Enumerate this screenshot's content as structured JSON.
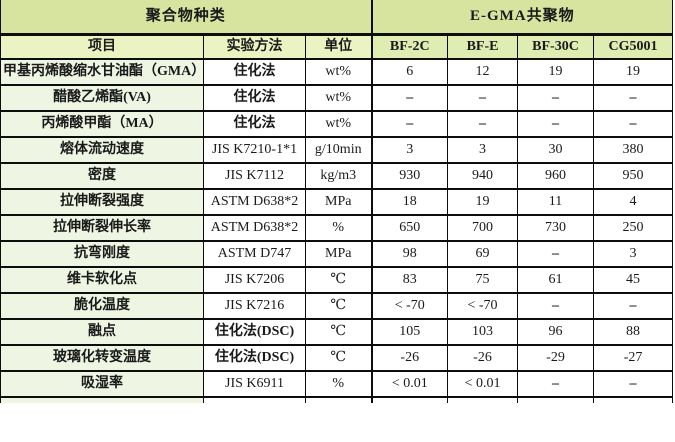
{
  "table": {
    "header_groups": [
      {
        "label": "聚合物种类",
        "colspan": 3
      },
      {
        "label": "E-GMA共聚物",
        "colspan": 4
      }
    ],
    "columns": [
      "项目",
      "实验方法",
      "单位",
      "BF-2C",
      "BF-E",
      "BF-30C",
      "CG5001"
    ],
    "rows": [
      {
        "item": "甲基丙烯酸缩水甘油酯（GMA）",
        "method": "住化法",
        "unit": "wt%",
        "values": [
          "6",
          "12",
          "19",
          "19"
        ]
      },
      {
        "item": "醋酸乙烯酯(VA)",
        "method": "住化法",
        "unit": "wt%",
        "values": [
          "–",
          "–",
          "–",
          "–"
        ]
      },
      {
        "item": "丙烯酸甲酯（MA）",
        "method": "住化法",
        "unit": "wt%",
        "values": [
          "–",
          "–",
          "–",
          "–"
        ]
      },
      {
        "item": "熔体流动速度",
        "method": "JIS K7210-1*1",
        "unit": "g/10min",
        "values": [
          "3",
          "3",
          "30",
          "380"
        ]
      },
      {
        "item": "密度",
        "method": "JIS K7112",
        "unit": "kg/m3",
        "values": [
          "930",
          "940",
          "960",
          "950"
        ]
      },
      {
        "item": "拉伸断裂强度",
        "method": "ASTM D638*2",
        "unit": "MPa",
        "values": [
          "18",
          "19",
          "11",
          "4"
        ]
      },
      {
        "item": "拉伸断裂伸长率",
        "method": "ASTM D638*2",
        "unit": "%",
        "values": [
          "650",
          "700",
          "730",
          "250"
        ]
      },
      {
        "item": "抗弯刚度",
        "method": "ASTM D747",
        "unit": "MPa",
        "values": [
          "98",
          "69",
          "–",
          "3"
        ]
      },
      {
        "item": "维卡软化点",
        "method": "JIS K7206",
        "unit": "℃",
        "values": [
          "83",
          "75",
          "61",
          "45"
        ]
      },
      {
        "item": "脆化温度",
        "method": "JIS K7216",
        "unit": "℃",
        "values": [
          "< -70",
          "< -70",
          "–",
          "–"
        ]
      },
      {
        "item": "融点",
        "method": "住化法(DSC)",
        "unit": "℃",
        "values": [
          "105",
          "103",
          "96",
          "88"
        ]
      },
      {
        "item": "玻璃化转变温度",
        "method": "住化法(DSC)",
        "unit": "℃",
        "values": [
          "-26",
          "-26",
          "-29",
          "-27"
        ]
      },
      {
        "item": "吸湿率",
        "method": "JIS K6911",
        "unit": "%",
        "values": [
          "< 0.01",
          "< 0.01",
          "–",
          "–"
        ]
      }
    ],
    "colors": {
      "group_header_bg": "#d6e4a0",
      "left_header_bg": "#ecf3c3",
      "right_header_bg": "#dfecb2",
      "item_column_bg": "#eef5e3",
      "cell_bg": "#ffffff",
      "border": "#0d0d0d",
      "text": "#1a1a1a"
    }
  }
}
